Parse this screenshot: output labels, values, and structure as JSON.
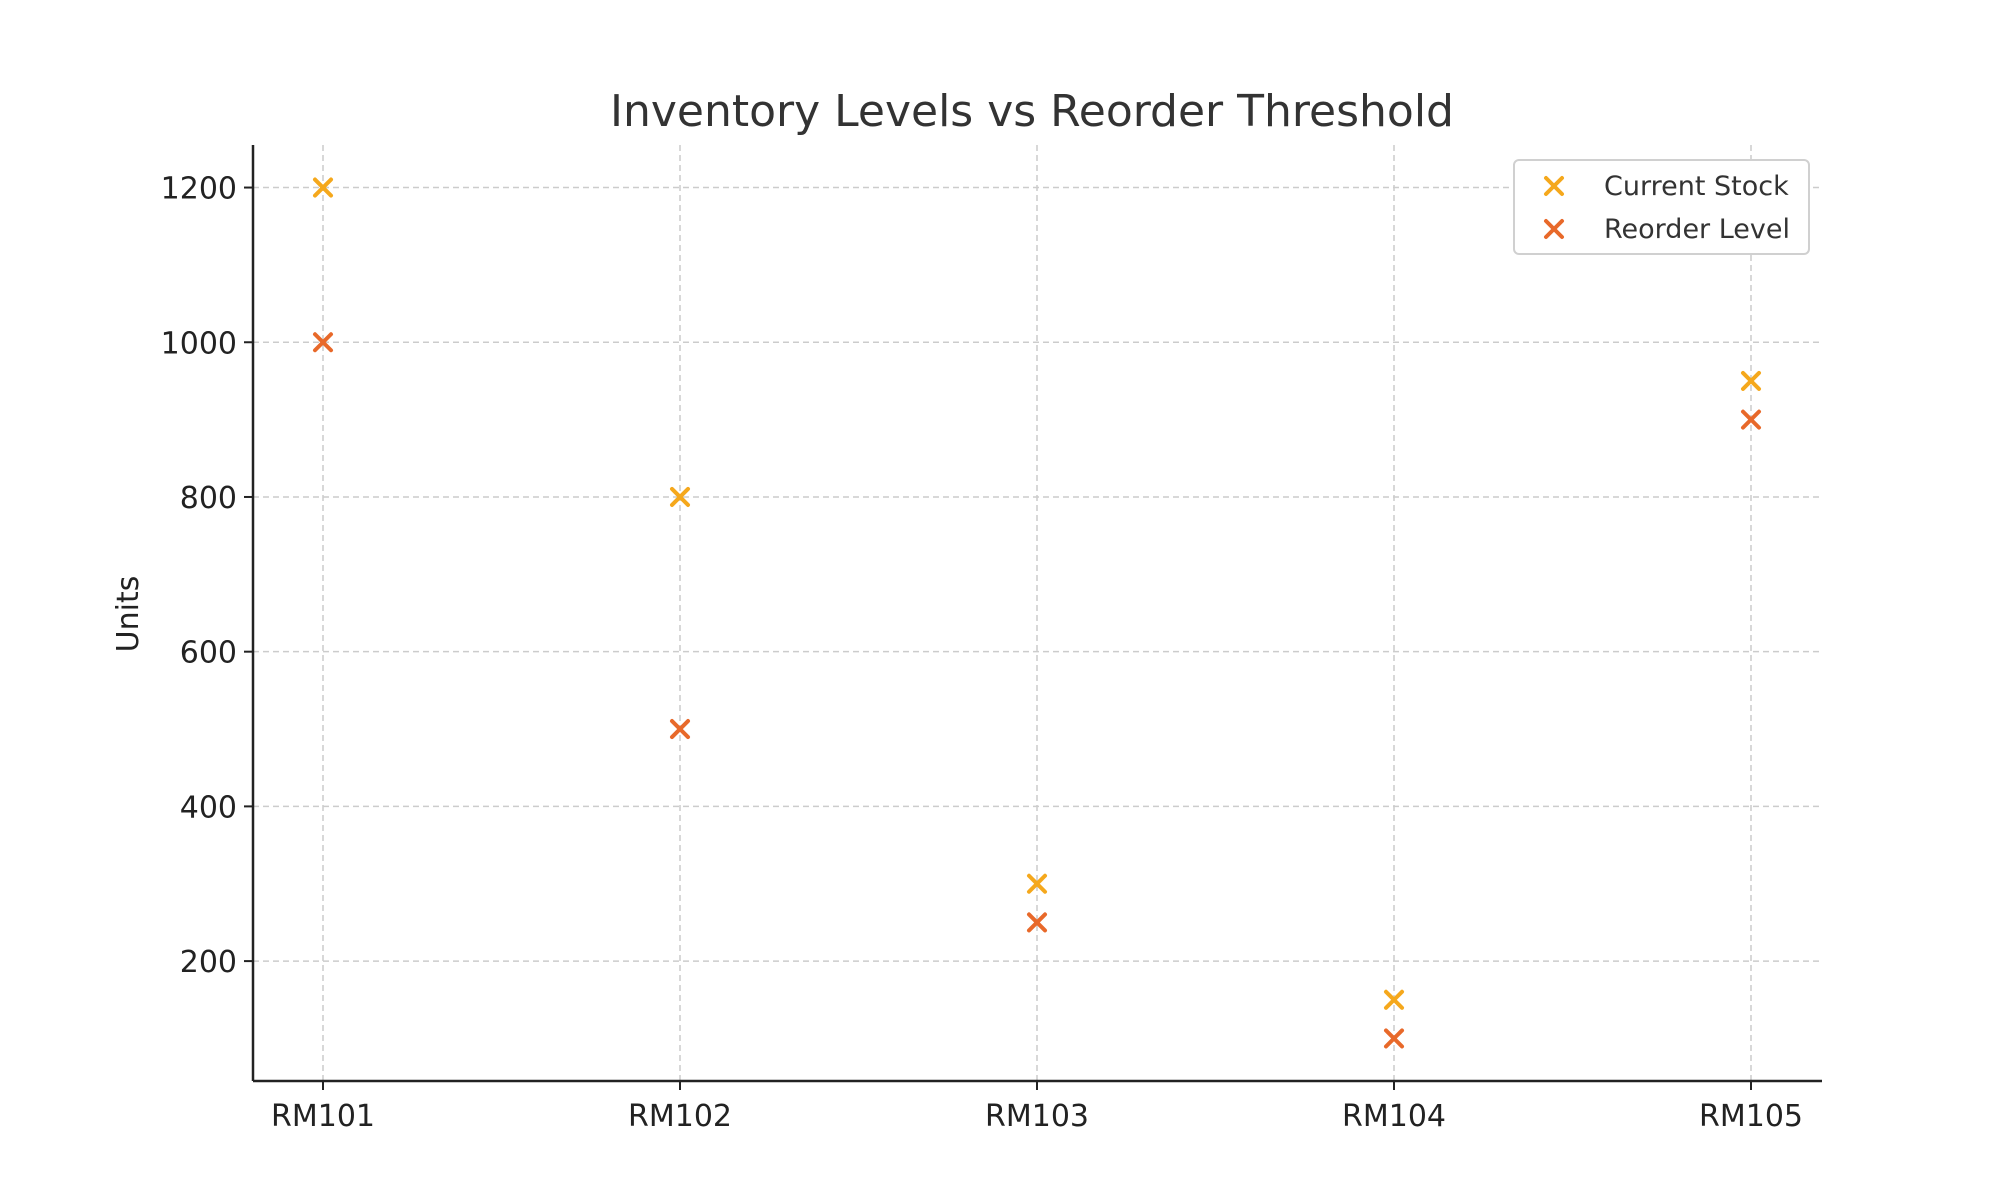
{
  "chart_data": {
    "type": "scatter",
    "title": "Inventory Levels vs Reorder Threshold",
    "xlabel": "",
    "ylabel": "Units",
    "categories": [
      "RM101",
      "RM102",
      "RM103",
      "RM104",
      "RM105"
    ],
    "yticks": [
      200,
      400,
      600,
      800,
      1000,
      1200
    ],
    "ylim": [
      45,
      1255
    ],
    "grid": true,
    "legend_position": "top-right",
    "marker": "x",
    "series": [
      {
        "name": "Current Stock",
        "color": "#f5a81c",
        "values": [
          1200,
          800,
          300,
          150,
          950
        ]
      },
      {
        "name": "Reorder Level",
        "color": "#e8692a",
        "values": [
          1000,
          500,
          250,
          100,
          900
        ]
      }
    ]
  }
}
